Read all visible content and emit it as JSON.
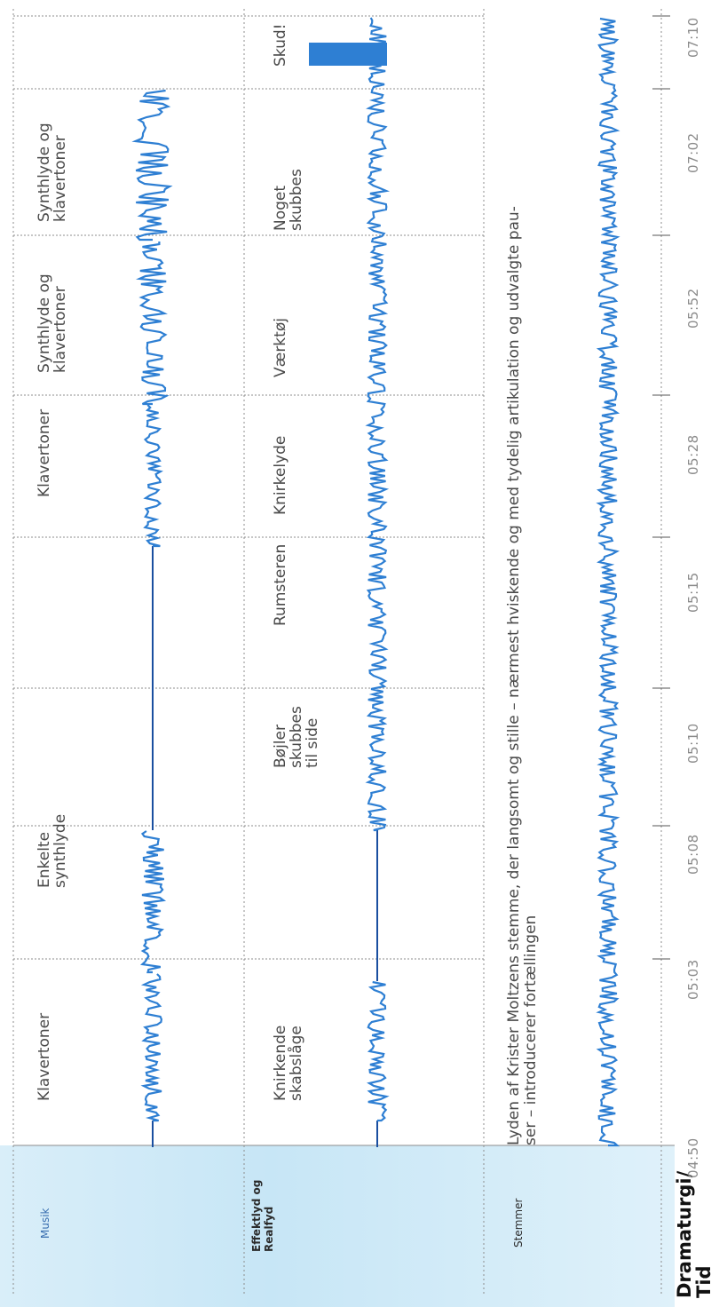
{
  "colors": {
    "waveform": "#2e7fd3",
    "waveform_dark": "#1a4fa0",
    "grid": "#8c8c8c",
    "label_band": "#cfe9f7"
  },
  "rows": {
    "musik": "Musik",
    "effektlyd": "Effektlyd og\nRealfyd",
    "stemmer": "Stemmer",
    "dramaturgi": "Dramaturgi/\nTid"
  },
  "times": [
    "04:50",
    "05:03",
    "05:08",
    "05:10",
    "05:15",
    "05:28",
    "05:52",
    "07:02",
    "07:10"
  ],
  "musik_segments": [
    "Klavertoner",
    "Enkelte\nsynthlyde",
    "",
    "",
    "Klavertoner",
    "Synthlyde og\nklavertoner",
    "Synthlyde og\nklavertoner",
    ""
  ],
  "effekt_segments": [
    "Knirkende\nskabslåge",
    "",
    "Bøjler\nskubbes\ntil side",
    "Rumsteren",
    "Knirkelyde",
    "Værktøj",
    "Noget\nskubbes",
    "Skud!"
  ],
  "stemmer_text": "Lyden af Krister Moltzens stemme, der langsomt og stille – nærmest hviskende og med tydelig artikulation og udvalgte pau-\nser – introducerer fortællingen"
}
